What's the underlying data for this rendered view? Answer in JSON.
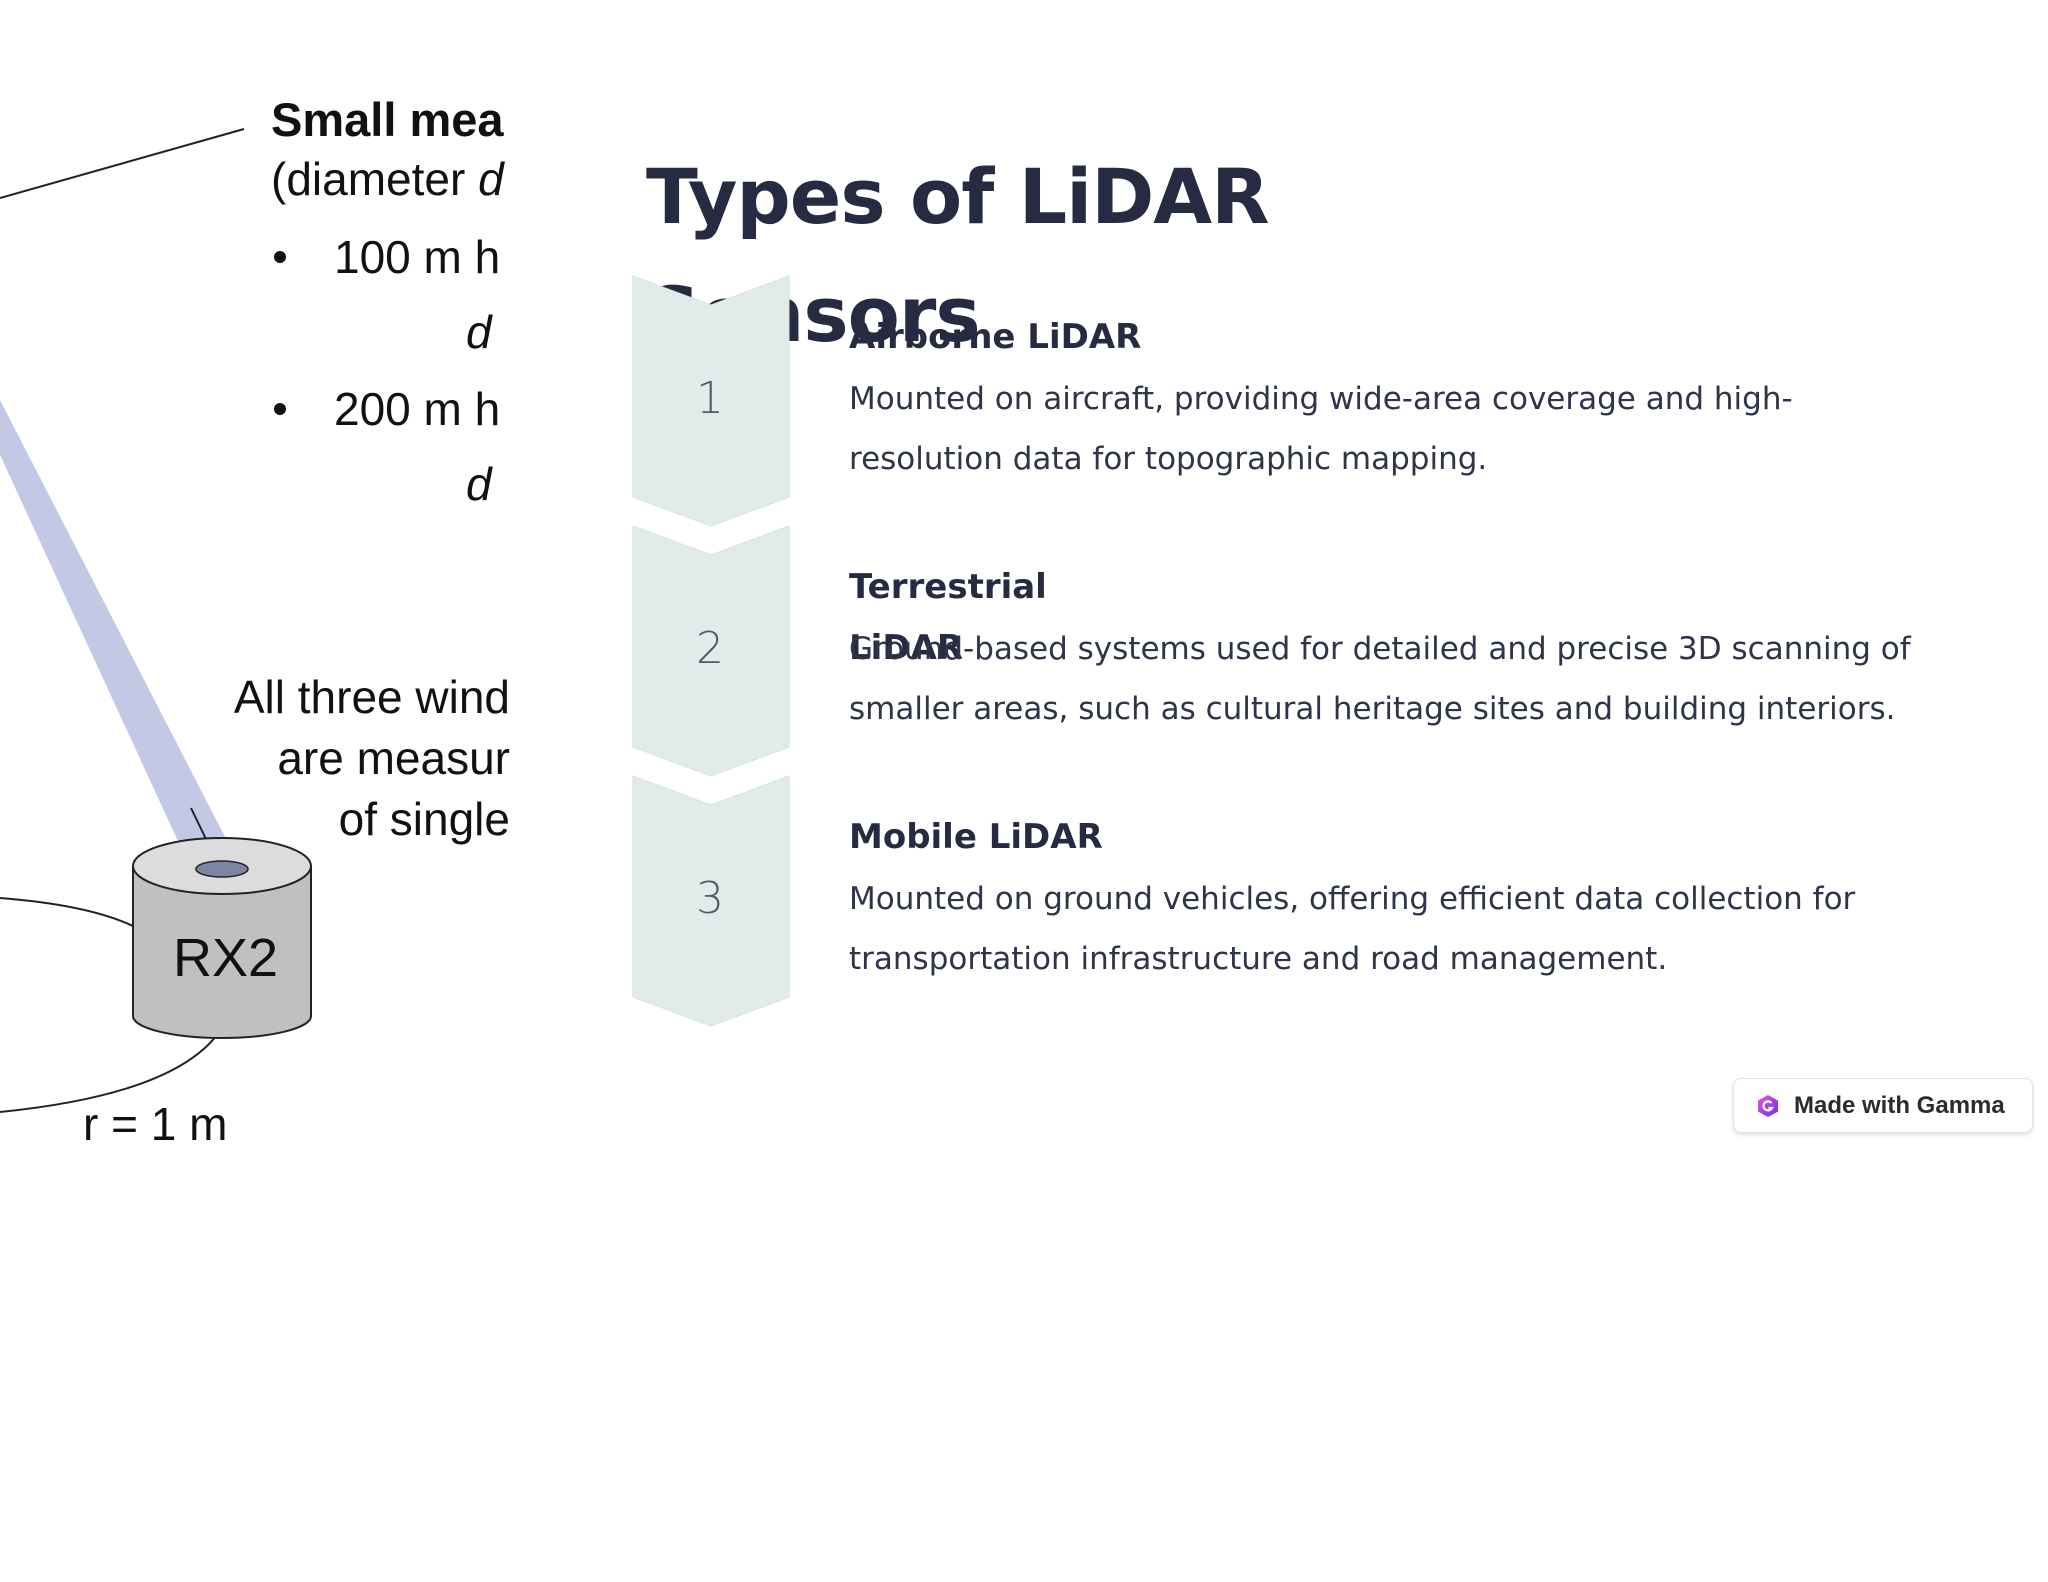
{
  "diagram": {
    "title": "Small mea",
    "subtitle": "(diameter",
    "subtitle_var": "d",
    "bullet1": "100 m h",
    "bullet1_formula": "d",
    "bullet2": "200 m h",
    "bullet2_formula": "d",
    "note_lines": [
      "All three wind",
      "are measur",
      "of single"
    ],
    "receiver_label": "RX2",
    "radius_label": "r = 1  m"
  },
  "slide": {
    "title": "Types of LiDAR Sensors",
    "steps": [
      {
        "number": "1",
        "title": "Airborne LiDAR",
        "description": "Mounted on aircraft, providing wide-area coverage and high-resolution data for topographic mapping."
      },
      {
        "number": "2",
        "title": "Terrestrial LiDAR",
        "description": "Ground-based systems used for detailed and precise 3D scanning of smaller areas, such as cultural heritage sites and building interiors."
      },
      {
        "number": "3",
        "title": "Mobile LiDAR",
        "description": "Mounted on ground vehicles, offering efficient data collection for transportation infrastructure and road management."
      }
    ]
  },
  "badge": {
    "label": "Made with Gamma",
    "icon": "gamma-logo-icon"
  },
  "colors": {
    "chevron_fill": "#e1ecea",
    "title_color": "#272b41",
    "beam_color": "#c3c9e4"
  }
}
